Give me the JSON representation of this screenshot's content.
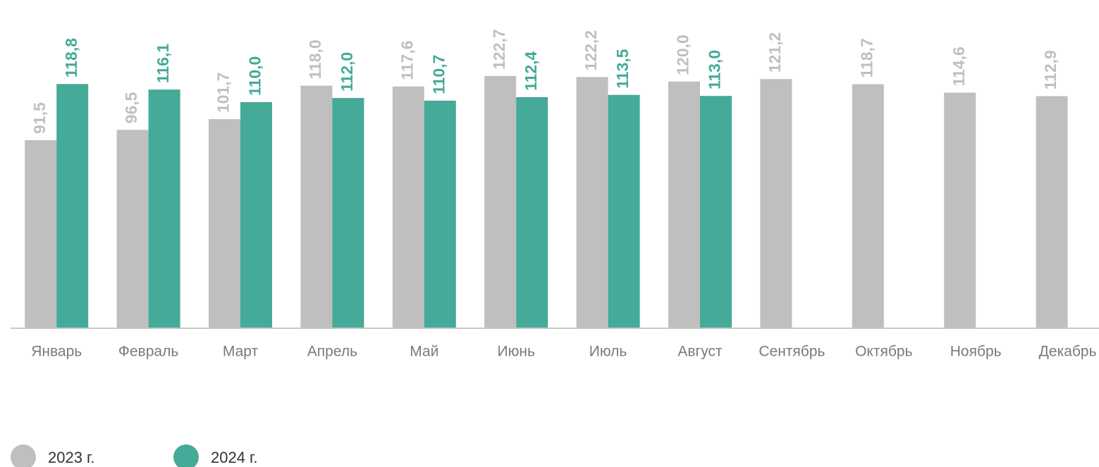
{
  "chart_data": {
    "type": "bar",
    "categories": [
      "Январь",
      "Февраль",
      "Март",
      "Апрель",
      "Май",
      "Июнь",
      "Июль",
      "Август",
      "Сентябрь",
      "Октябрь",
      "Ноябрь",
      "Декабрь"
    ],
    "series": [
      {
        "name": "2023 г.",
        "color": "#bfbfbf",
        "values": [
          91.5,
          96.5,
          101.7,
          118.0,
          117.6,
          122.7,
          122.2,
          120.0,
          121.2,
          118.7,
          114.6,
          112.9
        ],
        "value_labels": [
          "91,5",
          "96,5",
          "101,7",
          "118,0",
          "117,6",
          "122,7",
          "122,2",
          "120,0",
          "121,2",
          "118,7",
          "114,6",
          "112,9"
        ]
      },
      {
        "name": "2024 г.",
        "color": "#45aa98",
        "values": [
          118.8,
          116.1,
          110.0,
          112.0,
          110.7,
          112.4,
          113.5,
          113.0,
          null,
          null,
          null,
          null
        ],
        "value_labels": [
          "118,8",
          "116,1",
          "110,0",
          "112,0",
          "110,7",
          "112,4",
          "113,5",
          "113,0",
          null,
          null,
          null,
          null
        ]
      }
    ],
    "ylim": [
      0,
      160
    ],
    "legend": "bottom-left"
  }
}
